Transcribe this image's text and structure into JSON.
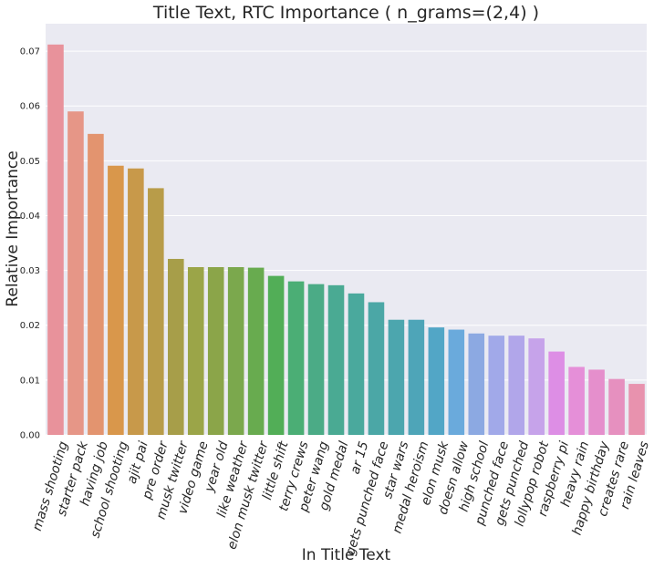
{
  "chart_data": {
    "type": "bar",
    "title": "Title Text, RTC Importance ( n_grams=(2,4) )",
    "xlabel": "In Title Text",
    "ylabel": "Relative Importance",
    "ylim": [
      0,
      0.075
    ],
    "yticks": [
      "0.00",
      "0.01",
      "0.02",
      "0.03",
      "0.04",
      "0.05",
      "0.06",
      "0.07"
    ],
    "grid": true,
    "categories": [
      "mass shooting",
      "starter pack",
      "having job",
      "school shooting",
      "ajit pai",
      "pre order",
      "musk twitter",
      "video game",
      "year old",
      "like weather",
      "elon musk twitter",
      "little shift",
      "terry crews",
      "peter wang",
      "gold medal",
      "ar 15",
      "gets punched face",
      "star wars",
      "medal heroism",
      "elon musk",
      "doesn allow",
      "high school",
      "punched face",
      "gets punched",
      "lollypop robot",
      "raspberry pi",
      "heavy rain",
      "happy birthday",
      "creates rare",
      "rain leaves"
    ],
    "values": [
      0.0712,
      0.059,
      0.0549,
      0.0491,
      0.0486,
      0.045,
      0.0321,
      0.0306,
      0.0306,
      0.0306,
      0.0305,
      0.029,
      0.028,
      0.0275,
      0.0273,
      0.0258,
      0.0242,
      0.021,
      0.021,
      0.0196,
      0.0192,
      0.0185,
      0.0181,
      0.0181,
      0.0176,
      0.0152,
      0.0124,
      0.0119,
      0.0102,
      0.0093
    ],
    "colors": [
      "#E8929B",
      "#E69687",
      "#E3946F",
      "#D9974B",
      "#C8994A",
      "#B89C49",
      "#A79E49",
      "#9BA548",
      "#8BA549",
      "#7BA84D",
      "#68AB4F",
      "#52AE57",
      "#4BAE75",
      "#4BAB86",
      "#4AAA93",
      "#4AA99D",
      "#4BA7A6",
      "#4CA6AE",
      "#4EA5B8",
      "#52A6C6",
      "#6AAADC",
      "#8CA9E2",
      "#A1A9E9",
      "#B1A6EA",
      "#C6A3EA",
      "#DD8EE5",
      "#E58FD8",
      "#E58FCC",
      "#E690BF",
      "#E892AE"
    ]
  }
}
